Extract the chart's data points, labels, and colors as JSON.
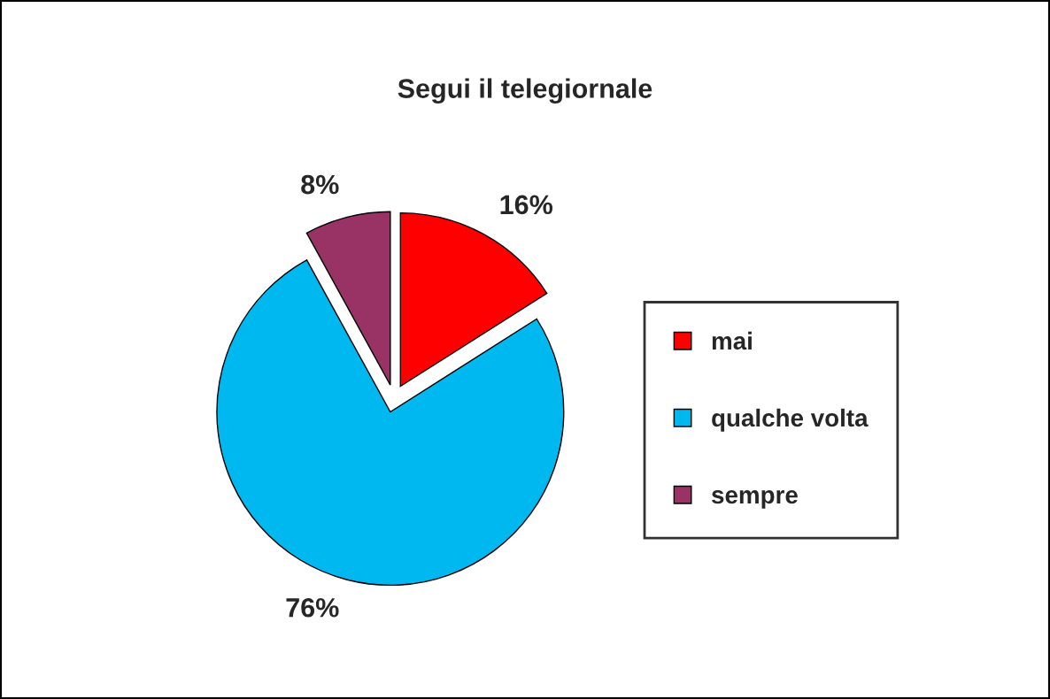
{
  "chart_data": {
    "type": "pie",
    "title": "Segui il telegiornale",
    "categories": [
      "mai",
      "qualche volta",
      "sempre"
    ],
    "values": [
      16,
      76,
      8
    ],
    "value_labels": [
      "16%",
      "76%",
      "8%"
    ],
    "colors": [
      "#ff0000",
      "#00b8f0",
      "#993366"
    ],
    "legend": "right"
  }
}
